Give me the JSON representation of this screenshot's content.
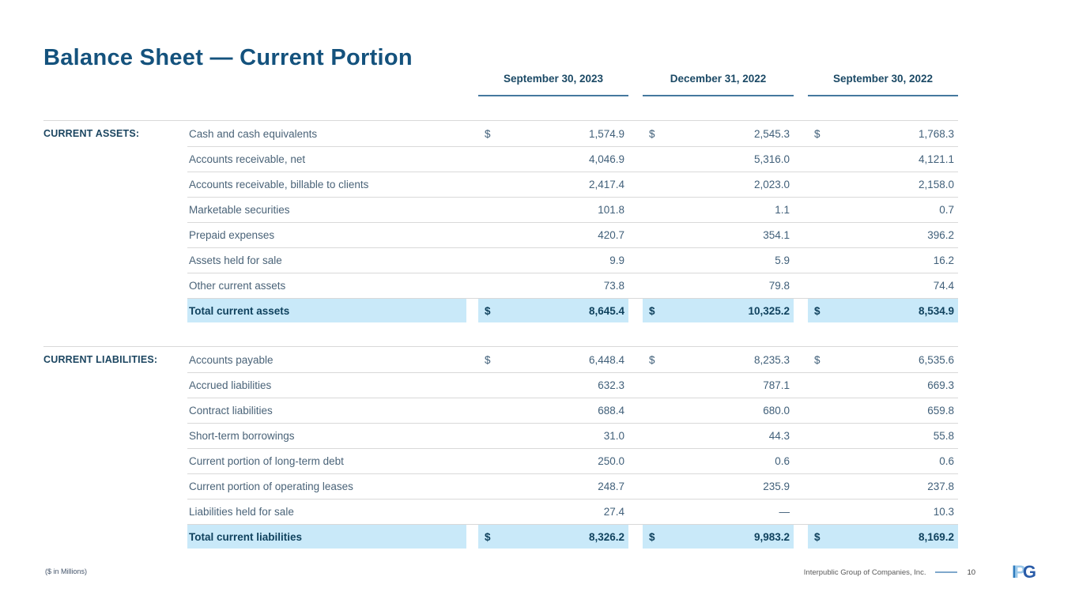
{
  "title": "Balance Sheet — Current Portion",
  "columns": [
    "September 30, 2023",
    "December 31, 2022",
    "September 30, 2022"
  ],
  "currency_symbol": "$",
  "sections": [
    {
      "label": "CURRENT ASSETS:",
      "rows": [
        {
          "label": "Cash and cash equivalents",
          "dollar": true,
          "values": [
            "1,574.9",
            "2,545.3",
            "1,768.3"
          ]
        },
        {
          "label": "Accounts receivable, net",
          "dollar": false,
          "values": [
            "4,046.9",
            "5,316.0",
            "4,121.1"
          ]
        },
        {
          "label": "Accounts receivable, billable to clients",
          "dollar": false,
          "values": [
            "2,417.4",
            "2,023.0",
            "2,158.0"
          ]
        },
        {
          "label": "Marketable securities",
          "dollar": false,
          "values": [
            "101.8",
            "1.1",
            "0.7"
          ]
        },
        {
          "label": "Prepaid expenses",
          "dollar": false,
          "values": [
            "420.7",
            "354.1",
            "396.2"
          ]
        },
        {
          "label": "Assets held for sale",
          "dollar": false,
          "values": [
            "9.9",
            "5.9",
            "16.2"
          ]
        },
        {
          "label": "Other current assets",
          "dollar": false,
          "values": [
            "73.8",
            "79.8",
            "74.4"
          ]
        }
      ],
      "total": {
        "label": "Total current assets",
        "dollar": true,
        "values": [
          "8,645.4",
          "10,325.2",
          "8,534.9"
        ]
      }
    },
    {
      "label": "CURRENT LIABILITIES:",
      "rows": [
        {
          "label": "Accounts payable",
          "dollar": true,
          "values": [
            "6,448.4",
            "8,235.3",
            "6,535.6"
          ]
        },
        {
          "label": "Accrued liabilities",
          "dollar": false,
          "values": [
            "632.3",
            "787.1",
            "669.3"
          ]
        },
        {
          "label": "Contract liabilities",
          "dollar": false,
          "values": [
            "688.4",
            "680.0",
            "659.8"
          ]
        },
        {
          "label": "Short-term borrowings",
          "dollar": false,
          "values": [
            "31.0",
            "44.3",
            "55.8"
          ]
        },
        {
          "label": "Current portion of long-term debt",
          "dollar": false,
          "values": [
            "250.0",
            "0.6",
            "0.6"
          ]
        },
        {
          "label": "Current portion of operating leases",
          "dollar": false,
          "values": [
            "248.7",
            "235.9",
            "237.8"
          ]
        },
        {
          "label": "Liabilities held for sale",
          "dollar": false,
          "values": [
            "27.4",
            "—",
            "10.3"
          ]
        }
      ],
      "total": {
        "label": "Total current liabilities",
        "dollar": true,
        "values": [
          "8,326.2",
          "9,983.2",
          "8,169.2"
        ]
      }
    }
  ],
  "footer": {
    "left_note": "($ in Millions)",
    "company": "Interpublic Group of Companies, Inc.",
    "page_number": "10",
    "logo_letters": [
      "I",
      "P",
      "G"
    ]
  },
  "colors": {
    "title_navy": "#14527D",
    "header_navy": "#1B4965",
    "body_slate": "#4A6378",
    "total_navy": "#10425E",
    "highlight_blue": "#C9E9F9",
    "divider_gray": "#D9D9D9",
    "underline_steel_blue": "#45789E",
    "logo_i_blue": "#2F7CBE",
    "logo_p_light_blue": "#9CC9EA",
    "logo_g_blue": "#2A5CA8"
  }
}
